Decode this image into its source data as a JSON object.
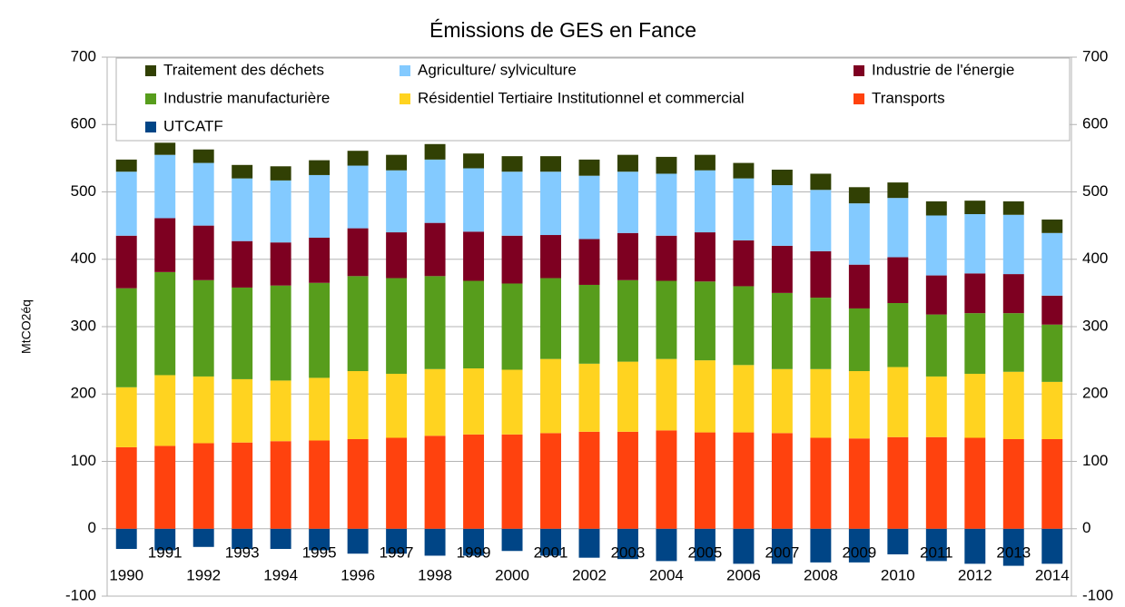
{
  "chart_data": {
    "type": "stacked_bar",
    "title": "Émissions de GES en Fance",
    "y_label": "MtCO2éq",
    "categories": [
      "1990",
      "1991",
      "1992",
      "1993",
      "1994",
      "1995",
      "1996",
      "1997",
      "1998",
      "1999",
      "2000",
      "2001",
      "2002",
      "2003",
      "2004",
      "2005",
      "2006",
      "2007",
      "2008",
      "2009",
      "2010",
      "2011",
      "2012",
      "2013",
      "2014"
    ],
    "series": [
      {
        "name": "Traitement des déchets",
        "color": "#314004",
        "values": [
          18,
          18,
          20,
          20,
          21,
          22,
          22,
          23,
          23,
          22,
          23,
          23,
          24,
          25,
          25,
          23,
          23,
          23,
          24,
          24,
          23,
          21,
          20,
          20,
          20
        ]
      },
      {
        "name": "Agriculture/ sylviculture",
        "color": "#83caff",
        "values": [
          95,
          94,
          93,
          93,
          92,
          93,
          93,
          92,
          94,
          94,
          95,
          94,
          94,
          91,
          92,
          92,
          92,
          90,
          91,
          91,
          88,
          89,
          88,
          88,
          93
        ]
      },
      {
        "name": "Industrie de l'énergie",
        "color": "#7e0021",
        "values": [
          78,
          80,
          81,
          69,
          64,
          67,
          71,
          68,
          79,
          73,
          71,
          64,
          68,
          70,
          67,
          73,
          68,
          70,
          69,
          65,
          68,
          58,
          59,
          58,
          43
        ]
      },
      {
        "name": "Industrie manufacturière",
        "color": "#579d1c",
        "values": [
          147,
          153,
          143,
          136,
          141,
          141,
          141,
          142,
          138,
          130,
          128,
          120,
          117,
          121,
          116,
          117,
          117,
          113,
          106,
          93,
          95,
          92,
          90,
          87,
          85
        ]
      },
      {
        "name": "Résidentiel Tertiaire Institutionnel et commercial",
        "color": "#ffd320",
        "values": [
          89,
          105,
          99,
          94,
          90,
          93,
          101,
          95,
          99,
          98,
          96,
          110,
          101,
          104,
          106,
          107,
          100,
          95,
          102,
          100,
          104,
          90,
          95,
          100,
          85
        ]
      },
      {
        "name": "Transports",
        "color": "#ff420e",
        "values": [
          121,
          123,
          127,
          128,
          130,
          131,
          133,
          135,
          138,
          140,
          140,
          142,
          144,
          144,
          146,
          143,
          143,
          142,
          135,
          134,
          136,
          136,
          135,
          133,
          133
        ]
      },
      {
        "name": "UTCATF",
        "color": "#004586",
        "values": [
          -30,
          -32,
          -27,
          -30,
          -30,
          -32,
          -37,
          -37,
          -40,
          -40,
          -33,
          -40,
          -43,
          -45,
          -48,
          -48,
          -52,
          -52,
          -50,
          -50,
          -38,
          -48,
          -52,
          -55,
          -52
        ]
      }
    ],
    "ylim": [
      -100,
      700
    ],
    "yticks": [
      -100,
      0,
      100,
      200,
      300,
      400,
      500,
      600,
      700
    ],
    "grid": true
  }
}
